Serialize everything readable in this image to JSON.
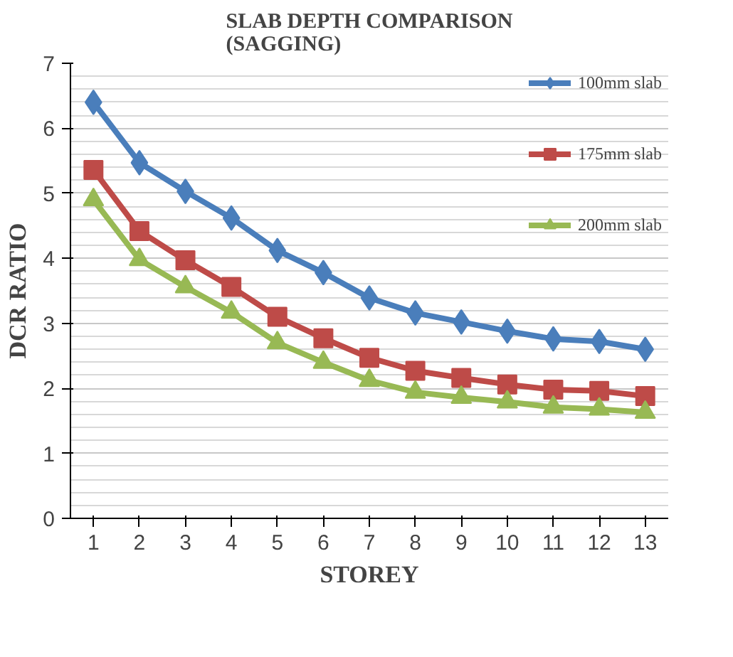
{
  "chart_data": {
    "type": "line",
    "title": "SLAB DEPTH COMPARISON\n(SAGGING)",
    "xlabel": "STOREY",
    "ylabel": "DCR RATIO",
    "x": [
      1,
      2,
      3,
      4,
      5,
      6,
      7,
      8,
      9,
      10,
      11,
      12,
      13
    ],
    "xlim": [
      0.5,
      13.5
    ],
    "xticks": [
      1,
      2,
      3,
      4,
      5,
      6,
      7,
      8,
      9,
      10,
      11,
      12,
      13
    ],
    "ylim": [
      0,
      7
    ],
    "yticks": [
      0,
      1,
      2,
      3,
      4,
      5,
      6,
      7
    ],
    "grid": "y",
    "legend": "top right",
    "series": [
      {
        "name": "100mm slab",
        "color": "#4a7ebb",
        "marker": "diamond",
        "values": [
          6.4,
          5.47,
          5.03,
          4.62,
          4.12,
          3.78,
          3.39,
          3.16,
          3.02,
          2.88,
          2.76,
          2.72,
          2.6
        ]
      },
      {
        "name": "175mm slab",
        "color": "#be4b48",
        "marker": "square",
        "values": [
          5.36,
          4.42,
          3.97,
          3.56,
          3.1,
          2.77,
          2.47,
          2.27,
          2.16,
          2.06,
          1.98,
          1.96,
          1.88
        ]
      },
      {
        "name": "200mm slab",
        "color": "#98b954",
        "marker": "triangle",
        "values": [
          4.9,
          3.98,
          3.56,
          3.17,
          2.7,
          2.4,
          2.12,
          1.94,
          1.86,
          1.79,
          1.71,
          1.68,
          1.63
        ]
      }
    ]
  }
}
